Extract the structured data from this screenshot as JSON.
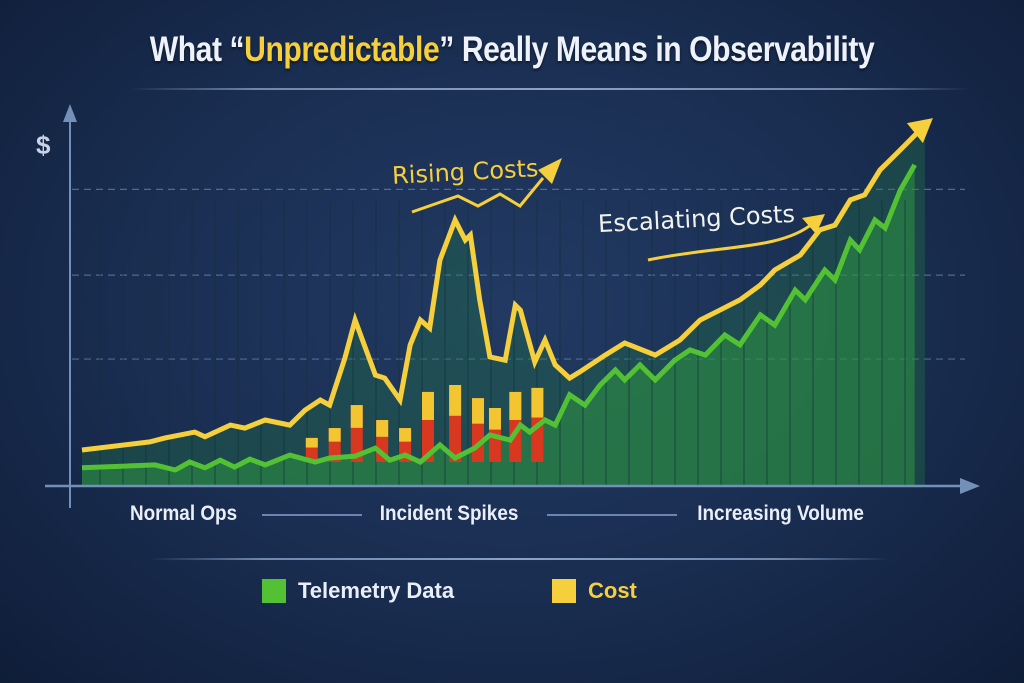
{
  "title": {
    "prefix": "What “",
    "highlight": "Unpredictable",
    "suffix": "” Really Means in Observability"
  },
  "colors": {
    "background": "#1a2e52",
    "telemetry": "#52c234",
    "cost": "#f6cf3c",
    "incident_red": "#d8381f",
    "axis": "#6f8db5",
    "highlight": "#f6cf3c"
  },
  "chart_data": {
    "type": "line",
    "ylabel": "$",
    "xlabel": "",
    "ylim": [
      0,
      100
    ],
    "xlim": [
      0,
      100
    ],
    "grid": "dashed horizontal",
    "legend_position": "bottom",
    "phases": [
      "Normal Ops",
      "Incident Spikes",
      "Increasing Volume"
    ],
    "series": [
      {
        "name": "Cost",
        "color": "#f6cf3c",
        "x": [
          0,
          8.0,
          9.8,
          13.3,
          14.5,
          17.5,
          19.2,
          21.6,
          24.5,
          26.3,
          28.1,
          29.2,
          31.0,
          32.2,
          34.6,
          35.7,
          37.5,
          38.7,
          39.9,
          41.0,
          42.2,
          44.0,
          45.2,
          45.8,
          46.9,
          48.1,
          49.9,
          51.1,
          51.7,
          53.4,
          54.6,
          55.8,
          57.5,
          58.7,
          61.7,
          64.0,
          67.6,
          70.5,
          72.9,
          75.2,
          77.6,
          80.0,
          81.7,
          84.7,
          87.0,
          88.8,
          90.6,
          92.3,
          94.1,
          96.5,
          99.4
        ],
        "y": [
          9.6,
          11.8,
          12.9,
          14.5,
          13.2,
          16.4,
          15.6,
          17.8,
          16.4,
          20.5,
          23.3,
          21.9,
          34.8,
          45.2,
          30.1,
          29.3,
          23.3,
          38.4,
          45.2,
          43.0,
          61.6,
          72.6,
          67.1,
          68.5,
          50.7,
          35.1,
          34.2,
          49.3,
          47.9,
          33.7,
          39.7,
          32.9,
          29.3,
          31.0,
          35.6,
          38.9,
          35.6,
          39.7,
          45.2,
          47.9,
          50.7,
          54.8,
          58.9,
          63.0,
          69.9,
          71.2,
          78.1,
          79.5,
          86.3,
          91.8,
          98.6
        ]
      },
      {
        "name": "Telemetry Data",
        "color": "#52c234",
        "x": [
          0,
          8.6,
          11.0,
          12.7,
          14.5,
          16.3,
          18.0,
          19.8,
          21.6,
          24.5,
          27.5,
          29.2,
          32.2,
          34.6,
          36.3,
          38.1,
          39.9,
          42.2,
          44.0,
          46.3,
          48.1,
          50.5,
          51.7,
          52.8,
          54.6,
          55.8,
          57.5,
          59.3,
          61.1,
          62.9,
          64.0,
          65.8,
          67.6,
          69.9,
          71.7,
          73.5,
          75.8,
          77.6,
          80.0,
          81.7,
          84.1,
          85.3,
          87.6,
          88.8,
          90.6,
          91.7,
          93.5,
          94.7,
          96.5,
          98.2
        ],
        "y": [
          4.7,
          5.5,
          4.1,
          6.3,
          4.7,
          6.8,
          4.9,
          7.1,
          5.5,
          8.2,
          6.3,
          7.4,
          7.9,
          10.1,
          6.8,
          8.2,
          6.3,
          11.0,
          7.4,
          10.1,
          13.7,
          12.3,
          16.4,
          14.5,
          17.8,
          16.4,
          24.7,
          21.9,
          27.4,
          31.5,
          28.8,
          32.9,
          28.8,
          34.2,
          37.0,
          35.6,
          41.1,
          38.4,
          46.6,
          43.8,
          53.4,
          50.7,
          58.9,
          56.2,
          67.1,
          64.4,
          72.6,
          70.4,
          80.8,
          87.7
        ]
      }
    ],
    "incident_bars": {
      "x": [
        27.1,
        29.8,
        32.4,
        35.4,
        38.1,
        40.8,
        44.0,
        46.7,
        48.7,
        51.1,
        53.7
      ],
      "y": [
        12.9,
        15.6,
        21.9,
        17.8,
        15.6,
        25.5,
        27.4,
        23.8,
        21.1,
        25.5,
        26.6
      ]
    },
    "annotations": [
      "Rising Costs",
      "Escalating Costs"
    ]
  },
  "legend": [
    {
      "label": "Telemetry Data",
      "color": "#52c234"
    },
    {
      "label": "Cost",
      "color": "#f6cf3c"
    }
  ]
}
